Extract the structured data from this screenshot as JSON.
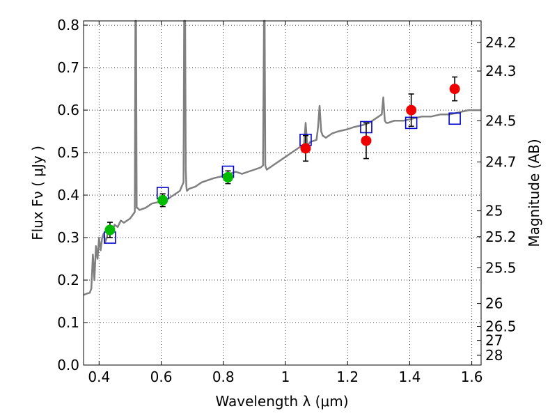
{
  "chart_data": {
    "type": "scatter",
    "xlabel": "Wavelength  λ (μm)",
    "ylabel": "Flux  Fν  ( μJy )",
    "ylabel_right": "Magnitude (AB)",
    "xlim": [
      0.35,
      1.63
    ],
    "ylim": [
      0.0,
      0.81
    ],
    "grid": true,
    "x_ticks": [
      {
        "value": 0.4,
        "label": "0.4"
      },
      {
        "value": 0.6,
        "label": "0.6"
      },
      {
        "value": 0.8,
        "label": "0.8"
      },
      {
        "value": 1.0,
        "label": "1"
      },
      {
        "value": 1.2,
        "label": "1.2"
      },
      {
        "value": 1.4,
        "label": "1.4"
      },
      {
        "value": 1.6,
        "label": "1.6"
      }
    ],
    "y_ticks": [
      {
        "value": 0.0,
        "label": "0.0"
      },
      {
        "value": 0.1,
        "label": "0.1"
      },
      {
        "value": 0.2,
        "label": "0.2"
      },
      {
        "value": 0.3,
        "label": "0.3"
      },
      {
        "value": 0.4,
        "label": "0.4"
      },
      {
        "value": 0.5,
        "label": "0.5"
      },
      {
        "value": 0.6,
        "label": "0.6"
      },
      {
        "value": 0.7,
        "label": "0.7"
      },
      {
        "value": 0.8,
        "label": "0.8"
      }
    ],
    "right_ticks": [
      {
        "flux": 0.759,
        "label": "24.2"
      },
      {
        "flux": 0.692,
        "label": "24.3"
      },
      {
        "flux": 0.575,
        "label": "24.5"
      },
      {
        "flux": 0.478,
        "label": "24.7"
      },
      {
        "flux": 0.363,
        "label": "25"
      },
      {
        "flux": 0.302,
        "label": "25.2"
      },
      {
        "flux": 0.229,
        "label": "25.5"
      },
      {
        "flux": 0.145,
        "label": "26"
      },
      {
        "flux": 0.091,
        "label": "26.5"
      },
      {
        "flux": 0.058,
        "label": "27"
      },
      {
        "flux": 0.023,
        "label": "28"
      }
    ],
    "series": [
      {
        "kind": "line",
        "color": "#808080",
        "x": [
          0.35,
          0.36,
          0.37,
          0.375,
          0.38,
          0.385,
          0.39,
          0.395,
          0.4,
          0.405,
          0.41,
          0.415,
          0.42,
          0.425,
          0.43,
          0.44,
          0.45,
          0.46,
          0.47,
          0.48,
          0.5,
          0.515,
          0.517,
          0.519,
          0.521,
          0.523,
          0.53,
          0.55,
          0.57,
          0.6,
          0.62,
          0.64,
          0.66,
          0.672,
          0.674,
          0.677,
          0.679,
          0.681,
          0.683,
          0.69,
          0.71,
          0.73,
          0.75,
          0.77,
          0.8,
          0.82,
          0.84,
          0.86,
          0.88,
          0.9,
          0.92,
          0.928,
          0.931,
          0.933,
          0.935,
          0.937,
          0.94,
          0.96,
          0.98,
          1.0,
          1.02,
          1.04,
          1.06,
          1.065,
          1.07,
          1.075,
          1.08,
          1.1,
          1.105,
          1.11,
          1.115,
          1.12,
          1.13,
          1.15,
          1.17,
          1.2,
          1.22,
          1.25,
          1.27,
          1.29,
          1.31,
          1.315,
          1.32,
          1.325,
          1.33,
          1.35,
          1.38,
          1.41,
          1.44,
          1.47,
          1.5,
          1.53,
          1.56,
          1.59,
          1.61,
          1.63
        ],
        "y": [
          0.165,
          0.168,
          0.17,
          0.18,
          0.26,
          0.2,
          0.28,
          0.25,
          0.3,
          0.27,
          0.3,
          0.31,
          0.29,
          0.3,
          0.32,
          0.31,
          0.33,
          0.325,
          0.34,
          0.335,
          0.345,
          0.36,
          0.81,
          0.81,
          0.37,
          0.37,
          0.365,
          0.37,
          0.38,
          0.385,
          0.39,
          0.4,
          0.41,
          0.43,
          0.81,
          0.81,
          0.46,
          0.42,
          0.41,
          0.415,
          0.42,
          0.43,
          0.435,
          0.44,
          0.445,
          0.45,
          0.455,
          0.45,
          0.455,
          0.46,
          0.465,
          0.47,
          0.81,
          0.81,
          0.47,
          0.465,
          0.46,
          0.47,
          0.48,
          0.49,
          0.5,
          0.51,
          0.52,
          0.57,
          0.52,
          0.52,
          0.525,
          0.53,
          0.56,
          0.61,
          0.55,
          0.54,
          0.535,
          0.545,
          0.55,
          0.555,
          0.56,
          0.565,
          0.57,
          0.58,
          0.59,
          0.63,
          0.575,
          0.57,
          0.57,
          0.575,
          0.575,
          0.58,
          0.585,
          0.585,
          0.59,
          0.59,
          0.595,
          0.6,
          0.6,
          0.6
        ]
      },
      {
        "kind": "model_points",
        "marker": "square",
        "color": "#0000cc",
        "x": [
          0.435,
          0.605,
          0.815,
          1.065,
          1.26,
          1.405,
          1.545
        ],
        "y": [
          0.3,
          0.405,
          0.455,
          0.53,
          0.56,
          0.57,
          0.58
        ]
      },
      {
        "kind": "observed",
        "marker": "circle",
        "color": "#00bb00",
        "x": [
          0.435,
          0.605,
          0.815
        ],
        "y": [
          0.318,
          0.388,
          0.442
        ],
        "err": [
          0.018,
          0.015,
          0.015
        ]
      },
      {
        "kind": "observed",
        "marker": "circle",
        "color": "#ee0000",
        "x": [
          1.065,
          1.26,
          1.405,
          1.545
        ],
        "y": [
          0.51,
          0.528,
          0.6,
          0.65
        ],
        "err": [
          0.03,
          0.042,
          0.038,
          0.028
        ]
      }
    ]
  }
}
